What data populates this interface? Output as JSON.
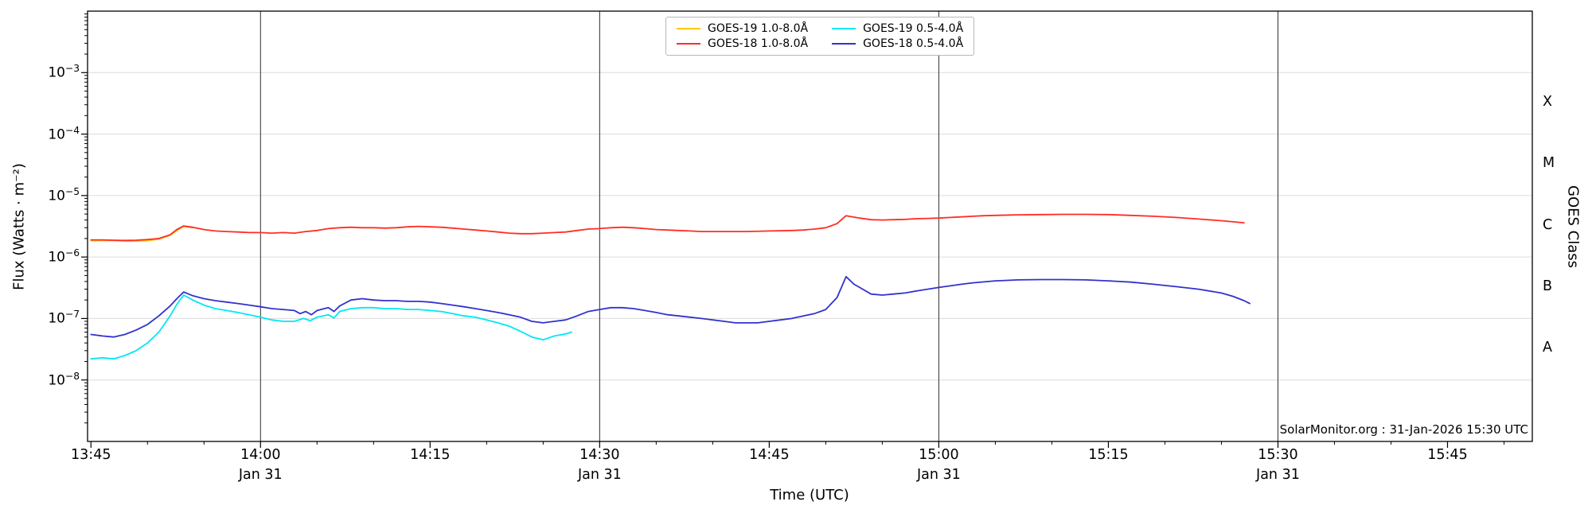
{
  "chart_data": {
    "type": "line",
    "xlabel": "Time (UTC)",
    "ylabel": "Flux (Watts · m⁻²)",
    "annotation": "SolarMonitor.org : 31-Jan-2026 15:30 UTC",
    "x_domain_minutes": [
      -0.3,
      127.5
    ],
    "ylim": [
      1e-09,
      0.01
    ],
    "x_ticks": [
      {
        "label": "13:45",
        "minute": 0,
        "date": ""
      },
      {
        "label": "14:00",
        "minute": 15,
        "date": "Jan 31"
      },
      {
        "label": "14:15",
        "minute": 30,
        "date": ""
      },
      {
        "label": "14:30",
        "minute": 45,
        "date": "Jan 31"
      },
      {
        "label": "14:45",
        "minute": 60,
        "date": ""
      },
      {
        "label": "15:00",
        "minute": 75,
        "date": "Jan 31"
      },
      {
        "label": "15:15",
        "minute": 90,
        "date": ""
      },
      {
        "label": "15:30",
        "minute": 105,
        "date": "Jan 31"
      },
      {
        "label": "15:45",
        "minute": 120,
        "date": ""
      }
    ],
    "vertical_lines_minutes": [
      15,
      45,
      75,
      105
    ],
    "y_tick_exponents": [
      -3,
      -4,
      -5,
      -6,
      -7,
      -8
    ],
    "right_axis": {
      "label": "GOES Class",
      "classes": [
        {
          "letter": "X",
          "exponent": -3.5
        },
        {
          "letter": "M",
          "exponent": -4.5
        },
        {
          "letter": "C",
          "exponent": -5.5
        },
        {
          "letter": "B",
          "exponent": -6.5
        },
        {
          "letter": "A",
          "exponent": -7.5
        }
      ]
    },
    "colors": {
      "grid": "#dcdcdc",
      "day_line": "#2e2e2e",
      "frame": "#000000"
    },
    "series": [
      {
        "id": "goes19-long",
        "name": "GOES-19 1.0-8.0Å",
        "color": "#ffc800",
        "points": [
          [
            0,
            1.85e-06
          ],
          [
            2,
            1.85e-06
          ],
          [
            3.5,
            1.8e-06
          ],
          [
            5,
            1.85e-06
          ],
          [
            6,
            1.95e-06
          ],
          [
            7,
            2.25e-06
          ],
          [
            7.6,
            2.7e-06
          ],
          [
            8.2,
            3.15e-06
          ],
          [
            9,
            3e-06
          ]
        ]
      },
      {
        "id": "goes18-long",
        "name": "GOES-18 1.0-8.0Å",
        "color": "#ff2d23",
        "points": [
          [
            0,
            1.9e-06
          ],
          [
            1,
            1.9e-06
          ],
          [
            2,
            1.88e-06
          ],
          [
            3,
            1.86e-06
          ],
          [
            4,
            1.88e-06
          ],
          [
            5,
            1.92e-06
          ],
          [
            6,
            2e-06
          ],
          [
            7,
            2.3e-06
          ],
          [
            7.6,
            2.8e-06
          ],
          [
            8.2,
            3.2e-06
          ],
          [
            9,
            3.05e-06
          ],
          [
            10,
            2.8e-06
          ],
          [
            11,
            2.65e-06
          ],
          [
            12,
            2.6e-06
          ],
          [
            13,
            2.55e-06
          ],
          [
            14,
            2.5e-06
          ],
          [
            15,
            2.5e-06
          ],
          [
            16,
            2.45e-06
          ],
          [
            17,
            2.5e-06
          ],
          [
            18,
            2.45e-06
          ],
          [
            19,
            2.6e-06
          ],
          [
            20,
            2.7e-06
          ],
          [
            21,
            2.9e-06
          ],
          [
            22,
            3e-06
          ],
          [
            23,
            3.05e-06
          ],
          [
            24,
            3e-06
          ],
          [
            25,
            3e-06
          ],
          [
            26,
            2.95e-06
          ],
          [
            27,
            3e-06
          ],
          [
            28,
            3.1e-06
          ],
          [
            29,
            3.15e-06
          ],
          [
            30,
            3.1e-06
          ],
          [
            31,
            3.05e-06
          ],
          [
            32,
            2.95e-06
          ],
          [
            33,
            2.85e-06
          ],
          [
            34,
            2.75e-06
          ],
          [
            35,
            2.65e-06
          ],
          [
            36,
            2.55e-06
          ],
          [
            37,
            2.45e-06
          ],
          [
            38,
            2.4e-06
          ],
          [
            39,
            2.4e-06
          ],
          [
            40,
            2.45e-06
          ],
          [
            41,
            2.5e-06
          ],
          [
            42,
            2.55e-06
          ],
          [
            43,
            2.7e-06
          ],
          [
            44,
            2.85e-06
          ],
          [
            45,
            2.9e-06
          ],
          [
            46,
            3e-06
          ],
          [
            47,
            3.05e-06
          ],
          [
            48,
            3e-06
          ],
          [
            49,
            2.9e-06
          ],
          [
            50,
            2.8e-06
          ],
          [
            51,
            2.75e-06
          ],
          [
            52,
            2.7e-06
          ],
          [
            53,
            2.65e-06
          ],
          [
            54,
            2.6e-06
          ],
          [
            56,
            2.6e-06
          ],
          [
            58,
            2.6e-06
          ],
          [
            60,
            2.65e-06
          ],
          [
            62,
            2.7e-06
          ],
          [
            63,
            2.75e-06
          ],
          [
            64,
            2.85e-06
          ],
          [
            65,
            3e-06
          ],
          [
            66,
            3.5e-06
          ],
          [
            66.8,
            4.7e-06
          ],
          [
            67.5,
            4.45e-06
          ],
          [
            68,
            4.3e-06
          ],
          [
            69,
            4.05e-06
          ],
          [
            70,
            4e-06
          ],
          [
            71,
            4.05e-06
          ],
          [
            72,
            4.1e-06
          ],
          [
            73,
            4.2e-06
          ],
          [
            74,
            4.25e-06
          ],
          [
            75,
            4.3e-06
          ],
          [
            76,
            4.4e-06
          ],
          [
            77,
            4.5e-06
          ],
          [
            78,
            4.6e-06
          ],
          [
            79,
            4.7e-06
          ],
          [
            80,
            4.75e-06
          ],
          [
            82,
            4.85e-06
          ],
          [
            84,
            4.9e-06
          ],
          [
            86,
            4.95e-06
          ],
          [
            88,
            4.95e-06
          ],
          [
            90,
            4.9e-06
          ],
          [
            92,
            4.75e-06
          ],
          [
            94,
            4.6e-06
          ],
          [
            96,
            4.4e-06
          ],
          [
            98,
            4.15e-06
          ],
          [
            100,
            3.9e-06
          ],
          [
            102,
            3.6e-06
          ]
        ]
      },
      {
        "id": "goes19-short",
        "name": "GOES-19 0.5-4.0Å",
        "color": "#00e8f5",
        "points": [
          [
            0,
            2.2e-08
          ],
          [
            1,
            2.3e-08
          ],
          [
            2,
            2.2e-08
          ],
          [
            3,
            2.5e-08
          ],
          [
            4,
            3e-08
          ],
          [
            5,
            4e-08
          ],
          [
            6,
            6e-08
          ],
          [
            7,
            1.1e-07
          ],
          [
            7.6,
            1.7e-07
          ],
          [
            8.2,
            2.4e-07
          ],
          [
            9,
            2e-07
          ],
          [
            10,
            1.65e-07
          ],
          [
            11,
            1.45e-07
          ],
          [
            12,
            1.35e-07
          ],
          [
            13,
            1.25e-07
          ],
          [
            14,
            1.15e-07
          ],
          [
            15,
            1.05e-07
          ],
          [
            16,
            9.5e-08
          ],
          [
            17,
            9e-08
          ],
          [
            18,
            9e-08
          ],
          [
            18.8,
            1e-07
          ],
          [
            19.4,
            9.2e-08
          ],
          [
            20,
            1.05e-07
          ],
          [
            21,
            1.15e-07
          ],
          [
            21.5,
            1.02e-07
          ],
          [
            22,
            1.3e-07
          ],
          [
            23,
            1.45e-07
          ],
          [
            24,
            1.5e-07
          ],
          [
            25,
            1.5e-07
          ],
          [
            26,
            1.45e-07
          ],
          [
            27,
            1.45e-07
          ],
          [
            28,
            1.4e-07
          ],
          [
            29,
            1.4e-07
          ],
          [
            30,
            1.35e-07
          ],
          [
            31,
            1.3e-07
          ],
          [
            32,
            1.2e-07
          ],
          [
            33,
            1.1e-07
          ],
          [
            34,
            1.05e-07
          ],
          [
            35,
            9.5e-08
          ],
          [
            36,
            8.5e-08
          ],
          [
            37,
            7.5e-08
          ],
          [
            38,
            6.2e-08
          ],
          [
            39,
            5e-08
          ],
          [
            40,
            4.5e-08
          ],
          [
            41,
            5.2e-08
          ],
          [
            42,
            5.6e-08
          ],
          [
            42.5,
            6e-08
          ]
        ]
      },
      {
        "id": "goes18-short",
        "name": "GOES-18 0.5-4.0Å",
        "color": "#3232cd",
        "points": [
          [
            0,
            5.5e-08
          ],
          [
            1,
            5.2e-08
          ],
          [
            2,
            5e-08
          ],
          [
            3,
            5.5e-08
          ],
          [
            4,
            6.5e-08
          ],
          [
            5,
            8e-08
          ],
          [
            6,
            1.1e-07
          ],
          [
            7,
            1.6e-07
          ],
          [
            7.6,
            2.1e-07
          ],
          [
            8.2,
            2.7e-07
          ],
          [
            9,
            2.35e-07
          ],
          [
            10,
            2.1e-07
          ],
          [
            11,
            1.95e-07
          ],
          [
            12,
            1.85e-07
          ],
          [
            13,
            1.75e-07
          ],
          [
            14,
            1.65e-07
          ],
          [
            15,
            1.55e-07
          ],
          [
            16,
            1.45e-07
          ],
          [
            17,
            1.4e-07
          ],
          [
            18,
            1.35e-07
          ],
          [
            18.5,
            1.2e-07
          ],
          [
            19,
            1.3e-07
          ],
          [
            19.5,
            1.15e-07
          ],
          [
            20,
            1.35e-07
          ],
          [
            21,
            1.5e-07
          ],
          [
            21.5,
            1.3e-07
          ],
          [
            22,
            1.6e-07
          ],
          [
            23,
            2e-07
          ],
          [
            24,
            2.1e-07
          ],
          [
            25,
            2e-07
          ],
          [
            26,
            1.95e-07
          ],
          [
            27,
            1.95e-07
          ],
          [
            28,
            1.9e-07
          ],
          [
            29,
            1.9e-07
          ],
          [
            30,
            1.85e-07
          ],
          [
            31,
            1.75e-07
          ],
          [
            32,
            1.65e-07
          ],
          [
            33,
            1.55e-07
          ],
          [
            34,
            1.45e-07
          ],
          [
            35,
            1.35e-07
          ],
          [
            36,
            1.25e-07
          ],
          [
            37,
            1.15e-07
          ],
          [
            38,
            1.05e-07
          ],
          [
            39,
            9e-08
          ],
          [
            40,
            8.5e-08
          ],
          [
            41,
            9e-08
          ],
          [
            42,
            9.5e-08
          ],
          [
            43,
            1.1e-07
          ],
          [
            44,
            1.3e-07
          ],
          [
            45,
            1.4e-07
          ],
          [
            46,
            1.5e-07
          ],
          [
            47,
            1.5e-07
          ],
          [
            48,
            1.45e-07
          ],
          [
            49,
            1.35e-07
          ],
          [
            50,
            1.25e-07
          ],
          [
            51,
            1.15e-07
          ],
          [
            52,
            1.1e-07
          ],
          [
            53,
            1.05e-07
          ],
          [
            54,
            1e-07
          ],
          [
            55,
            9.5e-08
          ],
          [
            56,
            9e-08
          ],
          [
            57,
            8.5e-08
          ],
          [
            58,
            8.5e-08
          ],
          [
            59,
            8.5e-08
          ],
          [
            60,
            9e-08
          ],
          [
            61,
            9.5e-08
          ],
          [
            62,
            1e-07
          ],
          [
            63,
            1.1e-07
          ],
          [
            64,
            1.2e-07
          ],
          [
            65,
            1.4e-07
          ],
          [
            66,
            2.2e-07
          ],
          [
            66.8,
            4.8e-07
          ],
          [
            67.5,
            3.6e-07
          ],
          [
            68,
            3.2e-07
          ],
          [
            69,
            2.5e-07
          ],
          [
            70,
            2.4e-07
          ],
          [
            71,
            2.5e-07
          ],
          [
            72,
            2.6e-07
          ],
          [
            73,
            2.8e-07
          ],
          [
            74,
            3e-07
          ],
          [
            75,
            3.2e-07
          ],
          [
            76,
            3.4e-07
          ],
          [
            77,
            3.6e-07
          ],
          [
            78,
            3.8e-07
          ],
          [
            80,
            4.1e-07
          ],
          [
            82,
            4.25e-07
          ],
          [
            84,
            4.3e-07
          ],
          [
            86,
            4.3e-07
          ],
          [
            88,
            4.25e-07
          ],
          [
            90,
            4.1e-07
          ],
          [
            92,
            3.9e-07
          ],
          [
            94,
            3.6e-07
          ],
          [
            96,
            3.3e-07
          ],
          [
            98,
            3e-07
          ],
          [
            100,
            2.6e-07
          ],
          [
            101,
            2.3e-07
          ],
          [
            102,
            1.95e-07
          ],
          [
            102.5,
            1.75e-07
          ]
        ]
      }
    ]
  }
}
